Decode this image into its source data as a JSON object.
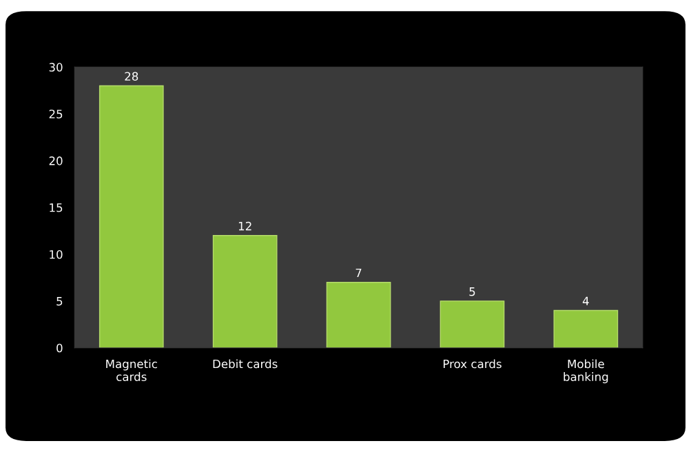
{
  "chart_data": {
    "type": "bar",
    "categories": [
      "Magnetic\ncards",
      "Debit cards",
      null,
      "Prox cards",
      "Mobile\nbanking"
    ],
    "values": [
      28,
      12,
      7,
      5,
      4
    ],
    "color": "#92c83e",
    "ylim": [
      0,
      30
    ],
    "yticks": [
      0,
      5,
      10,
      15,
      20,
      25,
      30
    ],
    "grid": false,
    "data_labels": true
  }
}
